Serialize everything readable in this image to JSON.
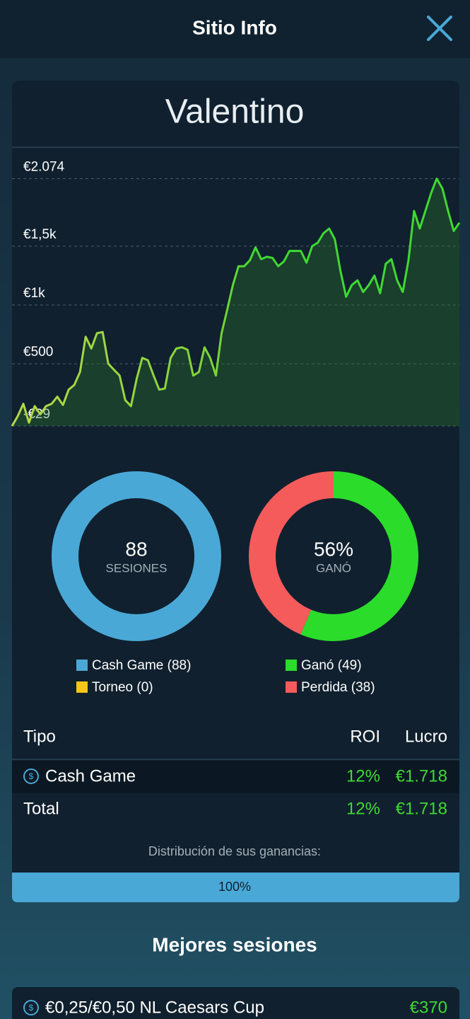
{
  "header": {
    "title": "Sitio Info"
  },
  "card": {
    "name": "Valentino"
  },
  "chart_data": [
    {
      "type": "line",
      "color": "#3fd932",
      "values": [
        -29,
        54,
        160,
        0,
        140,
        70,
        140,
        160,
        220,
        150,
        280,
        320,
        430,
        730,
        630,
        760,
        770,
        500,
        450,
        400,
        190,
        140,
        370,
        550,
        530,
        400,
        280,
        290,
        550,
        630,
        640,
        620,
        400,
        430,
        640,
        550,
        400,
        760,
        960,
        1170,
        1330,
        1330,
        1380,
        1490,
        1390,
        1410,
        1400,
        1330,
        1370,
        1460,
        1460,
        1460,
        1360,
        1500,
        1530,
        1610,
        1650,
        1560,
        1290,
        1070,
        1170,
        1210,
        1110,
        1170,
        1250,
        1100,
        1350,
        1390,
        1210,
        1110,
        1380,
        1800,
        1650,
        1800,
        1950,
        2074,
        1990,
        1800,
        1630,
        1700
      ],
      "ylim": [
        -29,
        2330
      ],
      "yticks": [
        {
          "value": -29,
          "label": "-€29"
        },
        {
          "value": 500,
          "label": "€500"
        },
        {
          "value": 1000,
          "label": "€1k"
        },
        {
          "value": 1500,
          "label": "€1,5k"
        },
        {
          "value": 2074,
          "label": "€2.074"
        }
      ],
      "grid": true
    },
    {
      "type": "pie",
      "center_value": 88,
      "center_label": "SESIONES",
      "categories": [
        "Cash Game (88)",
        "Torneo (0)"
      ],
      "values": [
        88,
        0
      ],
      "colors": [
        "#4aa8d6",
        "#f5c518"
      ]
    },
    {
      "type": "pie",
      "center_value": "56%",
      "center_label": "GANÓ",
      "categories": [
        "Ganó (49)",
        "Perdida (38)"
      ],
      "values": [
        49,
        38
      ],
      "colors": [
        "#2bdc2b",
        "#f55b5b"
      ]
    }
  ],
  "table": {
    "header": [
      "Tipo",
      "ROI",
      "Lucro"
    ],
    "rows": [
      [
        "Cash Game",
        "12%",
        "€1.718"
      ]
    ],
    "total": [
      "Total",
      "12%",
      "€1.718"
    ]
  },
  "distribution": {
    "label": "Distribución de sus ganancias:",
    "value": 100,
    "value_label": "100%"
  },
  "best_sessions": {
    "title": "Mejores sesiones",
    "items": [
      {
        "name": "€0,25/€0,50 NL Caesars Cup",
        "amount": "€370"
      }
    ]
  }
}
